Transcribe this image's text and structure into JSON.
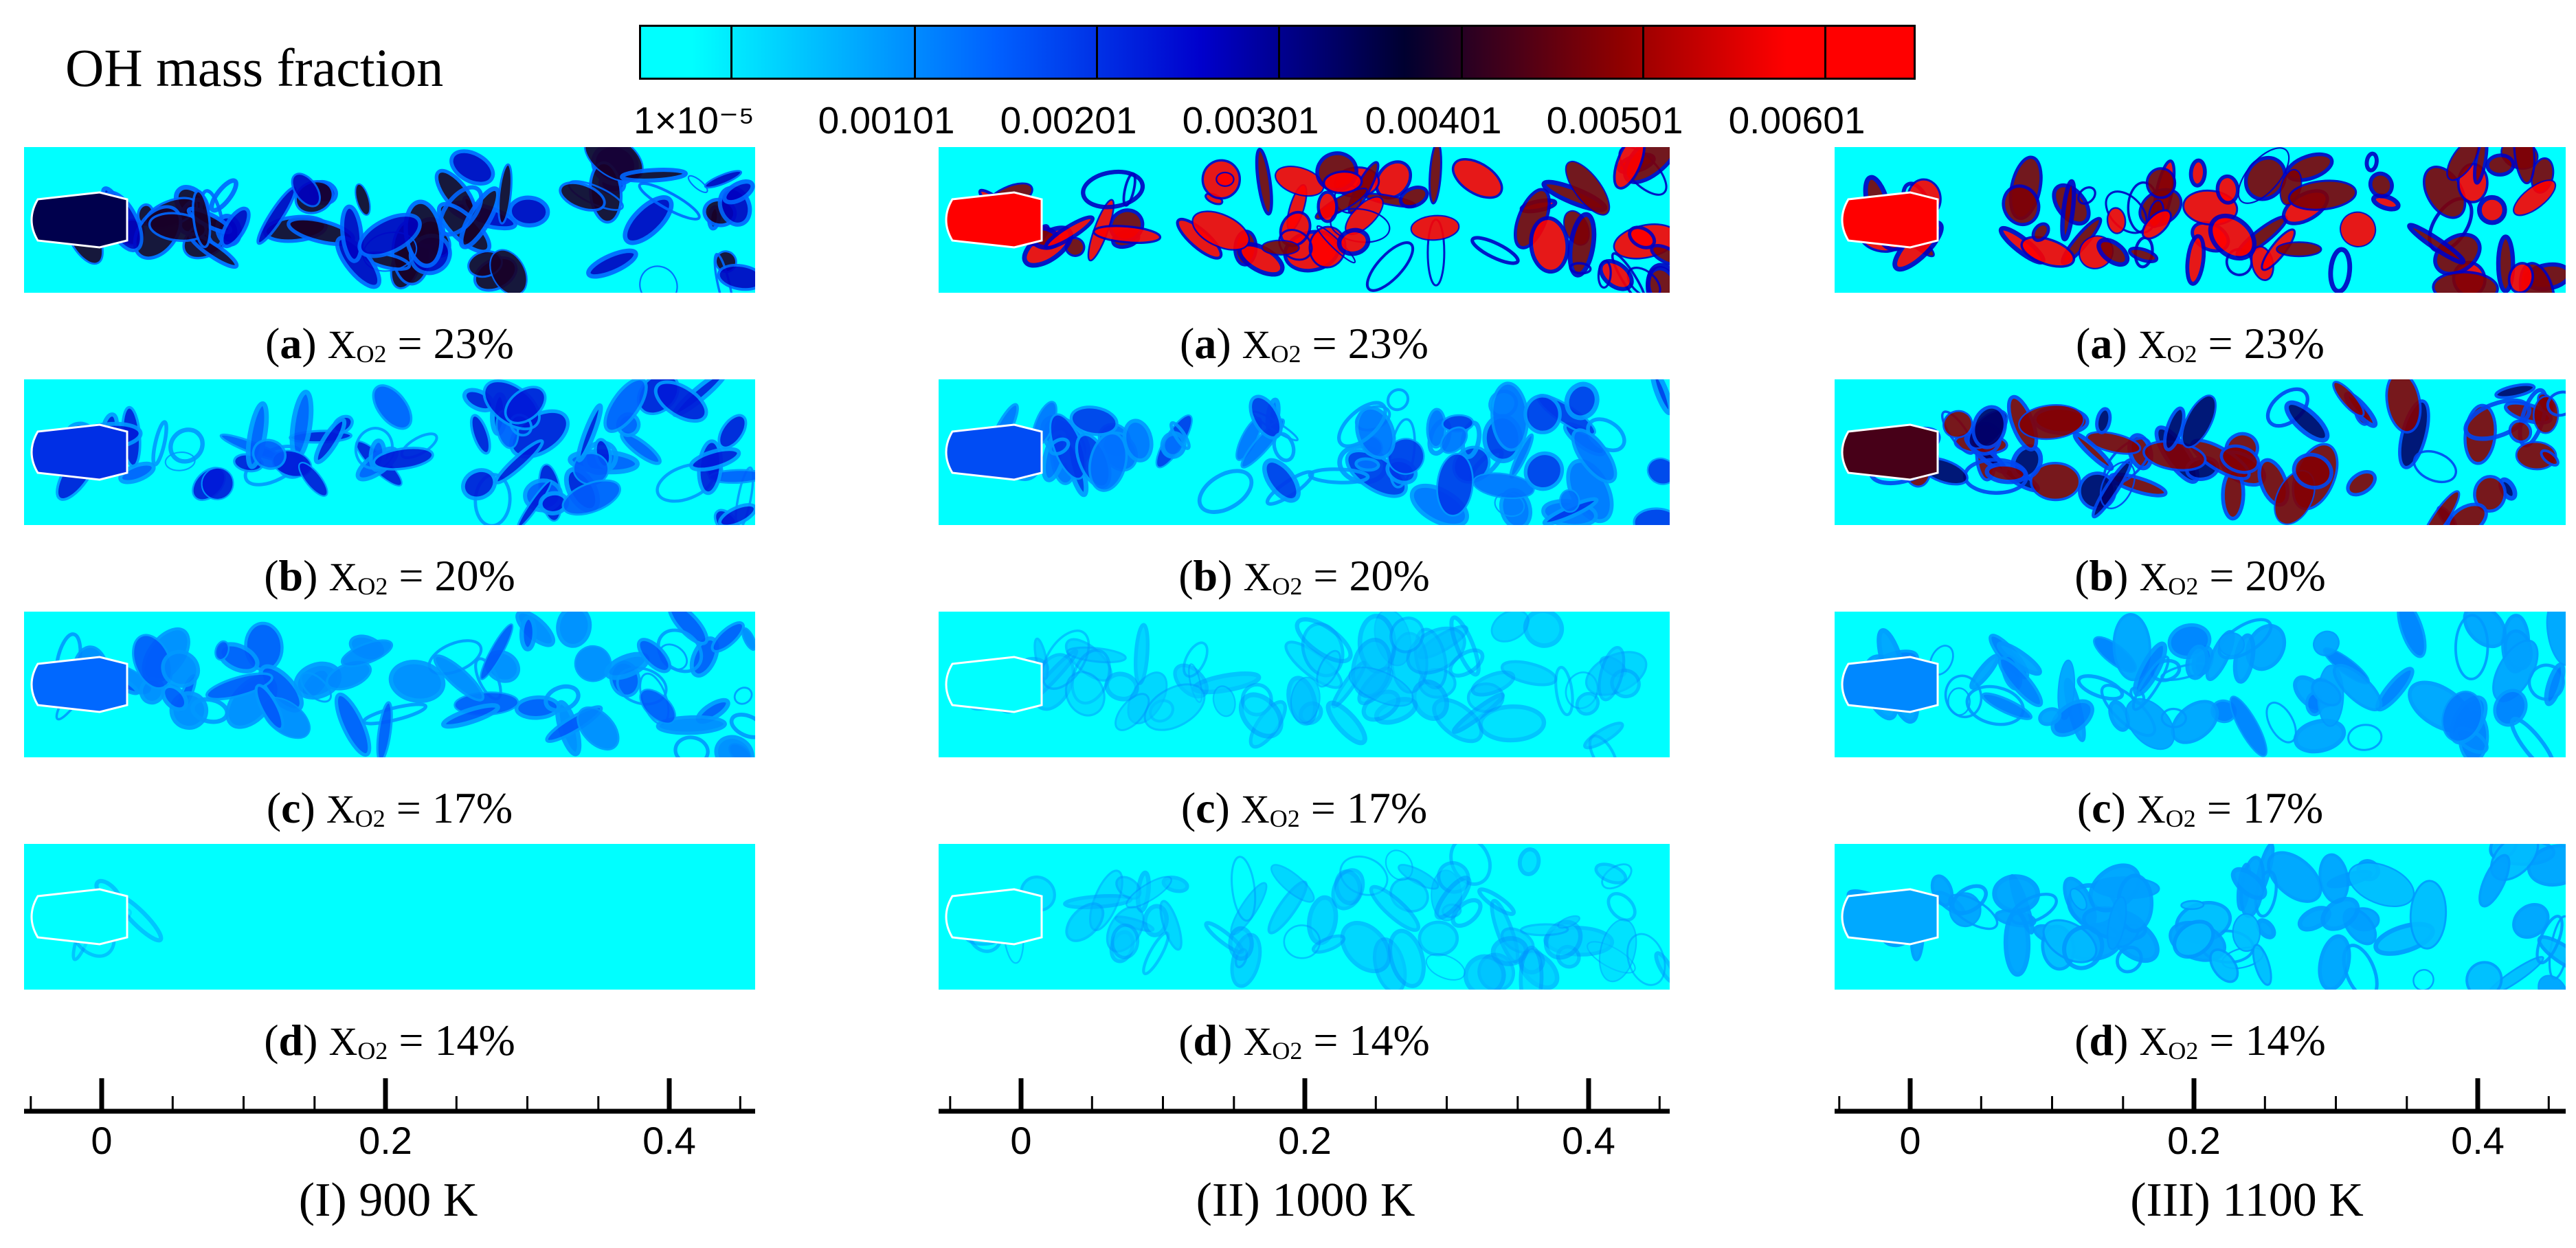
{
  "legend": {
    "title": "OH mass fraction",
    "stops": [
      "#00ffff",
      "#0060ff",
      "#0000cc",
      "#000030",
      "#900000",
      "#ff0000"
    ],
    "tick_labels": [
      "1×10⁻⁵",
      "0.00101",
      "0.00201",
      "0.00301",
      "0.00401",
      "0.00501",
      "0.00601"
    ]
  },
  "caption_common": {
    "species": "X",
    "subscript": "O2",
    "equals": "="
  },
  "columns": [
    {
      "label": "(I) 900 K",
      "axis_ticks": [
        "0",
        "0.2",
        "0.4"
      ],
      "panels": [
        {
          "letter": "a",
          "value": "23%",
          "level": 0.6
        },
        {
          "letter": "b",
          "value": "20%",
          "level": 0.38
        },
        {
          "letter": "c",
          "value": "17%",
          "level": 0.28
        },
        {
          "letter": "d",
          "value": "14%",
          "level": 0.02
        }
      ]
    },
    {
      "label": "(II) 1000 K",
      "axis_ticks": [
        "0",
        "0.2",
        "0.4"
      ],
      "panels": [
        {
          "letter": "a",
          "value": "23%",
          "level": 1.0
        },
        {
          "letter": "b",
          "value": "20%",
          "level": 0.33
        },
        {
          "letter": "c",
          "value": "17%",
          "level": 0.12
        },
        {
          "letter": "d",
          "value": "14%",
          "level": 0.12
        }
      ]
    },
    {
      "label": "(III) 1100 K",
      "axis_ticks": [
        "0",
        "0.2",
        "0.4"
      ],
      "panels": [
        {
          "letter": "a",
          "value": "23%",
          "level": 1.0
        },
        {
          "letter": "b",
          "value": "20%",
          "level": 0.72
        },
        {
          "letter": "c",
          "value": "17%",
          "level": 0.22
        },
        {
          "letter": "d",
          "value": "14%",
          "level": 0.16
        }
      ]
    }
  ]
}
